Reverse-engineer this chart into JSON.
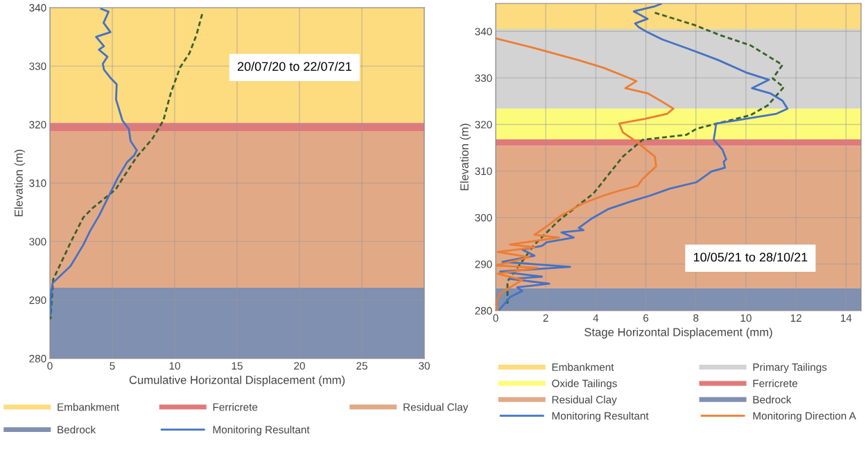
{
  "chart_data": [
    {
      "type": "line",
      "xlabel": "Cumulative Horizontal Displacement (mm)",
      "ylabel": "Elevation (m)",
      "xlim": [
        0,
        30
      ],
      "xticks": [
        0,
        5,
        10,
        15,
        20,
        25,
        30
      ],
      "ylim": [
        280,
        340
      ],
      "yticks": [
        280,
        290,
        300,
        310,
        320,
        330,
        340
      ],
      "grid": true,
      "legend": "bottom",
      "annotations": [
        "20/07/20 to 22/07/21"
      ],
      "bands": [
        {
          "axis": "y",
          "from": 320.3,
          "to": 340,
          "label": "Embankment",
          "color": "#fddb7f"
        },
        {
          "axis": "y",
          "from": 318.9,
          "to": 320.3,
          "label": "Ferricrete",
          "color": "#e07a7a"
        },
        {
          "axis": "y",
          "from": 292.1,
          "to": 318.9,
          "label": "Residual Clay",
          "color": "#e2a987"
        },
        {
          "axis": "y",
          "from": 280,
          "to": 292.1,
          "label": "Bedrock",
          "color": "#8090b0"
        }
      ],
      "series": [
        {
          "color": "#38602a",
          "line_style": "dashed",
          "x": [
            12.2,
            11.74,
            11.18,
            10.44,
            9.7,
            9.09,
            8.22,
            6.93,
            5.26,
            3.41,
            2.67,
            1.74,
            0.26,
            0.04
          ],
          "values": [
            338.9,
            335.3,
            332.2,
            329.8,
            325.5,
            320.7,
            317.6,
            314.4,
            308.9,
            305.7,
            304.1,
            300.2,
            293.5,
            286.7
          ]
        },
        {
          "name": "Monitoring Resultant",
          "color": "#4472c4",
          "line_style": "solid",
          "x": [
            4.11,
            4.7,
            4.3,
            4.85,
            3.7,
            4.33,
            3.93,
            4.61,
            4.24,
            4.33,
            4.89,
            5.35,
            5.3,
            5.81,
            6.33,
            6.46,
            6.96,
            6.74,
            6.19,
            5.44,
            4.7,
            3.96,
            3.22,
            2.67,
            1.65,
            0.22,
            0.07,
            0.04
          ],
          "values": [
            339.8,
            339.3,
            337.4,
            335.8,
            335.0,
            333.4,
            332.8,
            331.6,
            330.4,
            329.4,
            327.9,
            326.9,
            324.3,
            320.7,
            319.2,
            317.2,
            315.6,
            314.7,
            313.6,
            310.9,
            307.7,
            304.5,
            301.8,
            299.4,
            295.8,
            292.9,
            290.7,
            287.5
          ]
        }
      ]
    },
    {
      "type": "line",
      "xlabel": "Stage Horizontal Displacement (mm)",
      "ylabel": "Elevation (m)",
      "xlim": [
        0,
        14.6
      ],
      "xticks": [
        0,
        2,
        4,
        6,
        8,
        10,
        12,
        14
      ],
      "ylim": [
        280,
        346
      ],
      "yticks": [
        280,
        290,
        300,
        310,
        320,
        330,
        340
      ],
      "grid": true,
      "legend": "bottom",
      "annotations": [
        "10/05/21 to 28/10/21"
      ],
      "bands": [
        {
          "axis": "y",
          "from": 340.5,
          "to": 346,
          "label": "Embankment",
          "color": "#fddb7f"
        },
        {
          "axis": "y",
          "from": 323.4,
          "to": 340.5,
          "label": "Primary Tailings",
          "color": "#d3d3d3"
        },
        {
          "axis": "y",
          "from": 316.8,
          "to": 323.4,
          "label": "Oxide Tailings",
          "color": "#fcfc7a"
        },
        {
          "axis": "y",
          "from": 315.4,
          "to": 316.8,
          "label": "Ferricrete",
          "color": "#e07a7a"
        },
        {
          "axis": "y",
          "from": 284.8,
          "to": 315.4,
          "label": "Residual Clay",
          "color": "#e2a987"
        },
        {
          "axis": "y",
          "from": 280,
          "to": 284.8,
          "label": "Bedrock",
          "color": "#8090b0"
        }
      ],
      "series": [
        {
          "color": "#38602a",
          "line_style": "dashed",
          "x": [
            6.36,
            7.93,
            8.91,
            10.18,
            11.46,
            11.07,
            11.51,
            10.87,
            10.18,
            8.03,
            7.63,
            5.87,
            5.08,
            3.91,
            2.53,
            1.55,
            0.47,
            0.47
          ],
          "values": [
            344.0,
            341.4,
            339.3,
            337.0,
            332.8,
            329.9,
            328.0,
            324.1,
            322.0,
            319.1,
            317.8,
            316.7,
            313.1,
            305.2,
            299.4,
            294.2,
            286.3,
            281.0
          ]
        },
        {
          "name": "Monitoring Resultant",
          "color": "#4472c4",
          "line_style": "solid",
          "x": [
            6.6,
            6.36,
            5.52,
            6.07,
            5.57,
            5.72,
            6.07,
            6.65,
            7.63,
            8.91,
            9.99,
            10.92,
            10.24,
            10.97,
            11.46,
            11.66,
            11.22,
            9.4,
            8.81,
            8.76,
            8.71,
            9.06,
            9.21,
            9.11,
            9.16,
            8.62,
            8.03,
            6.95,
            6.16,
            5.48,
            4.49,
            3.81,
            3.32,
            3.51,
            2.63,
            3.12,
            2.04,
            1.85,
            1.06,
            1.55,
            0.27,
            2.97,
            0.18,
            1.85,
            0.57,
            2.14,
            0.86,
            1.06,
            0.57,
            0.37,
            0.13
          ],
          "values": [
            345.9,
            345.4,
            344.3,
            342.7,
            341.7,
            340.9,
            339.8,
            338.3,
            336.4,
            333.8,
            331.2,
            329.6,
            327.8,
            326.7,
            325.1,
            323.4,
            322.3,
            320.7,
            320.2,
            318.3,
            316.7,
            314.6,
            312.5,
            312.0,
            310.7,
            309.9,
            307.6,
            306.2,
            304.7,
            303.6,
            301.8,
            299.7,
            297.8,
            297.3,
            296.8,
            295.7,
            294.7,
            293.9,
            293.1,
            291.8,
            290.5,
            289.4,
            288.4,
            287.3,
            286.8,
            285.8,
            285.0,
            284.2,
            282.9,
            281.6,
            280.1
          ]
        },
        {
          "name": "Monitoring Direction A",
          "color": "#ed7d31",
          "line_style": "solid",
          "x": [
            0,
            1.55,
            3.32,
            4.3,
            5.28,
            5.62,
            5.18,
            6.07,
            6.65,
            7.1,
            6.85,
            5.97,
            4.94,
            5.08,
            5.57,
            6.36,
            6.41,
            5.87,
            5.67,
            4.89,
            4.3,
            3.51,
            2.63,
            2.04,
            1.55,
            2.53,
            0.57,
            1.55,
            0.08,
            1.35,
            0,
            1.65,
            0.08,
            1.06,
            0.18,
            0,
            0.08
          ],
          "values": [
            338.5,
            336.4,
            333.8,
            332.2,
            330.1,
            329.3,
            327.8,
            326.7,
            324.9,
            323.4,
            322.3,
            321.2,
            320.2,
            318.3,
            316.5,
            313.1,
            311.0,
            308.3,
            306.8,
            305.7,
            304.7,
            303.1,
            300.5,
            298.1,
            296.3,
            295.7,
            294.2,
            293.6,
            292.6,
            291.5,
            289.7,
            289.2,
            287.9,
            286.6,
            283.7,
            281.6,
            280.0
          ]
        }
      ]
    }
  ]
}
